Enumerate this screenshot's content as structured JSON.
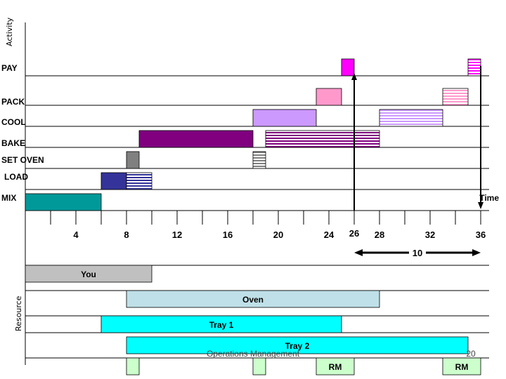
{
  "chart_data": {
    "type": "gantt",
    "ylabel_top": "Activity",
    "ylabel_bottom": "Resource",
    "xlabel": "Time",
    "x_range": [
      0,
      36
    ],
    "ticks": [
      4,
      8,
      12,
      16,
      20,
      24,
      28,
      32,
      36
    ],
    "marker": {
      "value": 26,
      "label": "26"
    },
    "span": {
      "from": 26,
      "to": 36,
      "label": "10"
    },
    "activities": [
      {
        "name": "PAY",
        "bars": [
          {
            "start": 25,
            "end": 26,
            "color": "#ff00ff",
            "pattern": "solid"
          },
          {
            "start": 35,
            "end": 36,
            "color": "#ff00ff",
            "pattern": "striped"
          }
        ]
      },
      {
        "name": "PACK",
        "bars": [
          {
            "start": 23,
            "end": 25,
            "color": "#ff99cc",
            "pattern": "solid"
          },
          {
            "start": 33,
            "end": 35,
            "color": "#ff99cc",
            "pattern": "striped"
          }
        ]
      },
      {
        "name": "COOL",
        "bars": [
          {
            "start": 18,
            "end": 23,
            "color": "#cc99ff",
            "pattern": "solid"
          },
          {
            "start": 28,
            "end": 33,
            "color": "#cc99ff",
            "pattern": "striped"
          }
        ]
      },
      {
        "name": "BAKE",
        "bars": [
          {
            "start": 9,
            "end": 18,
            "color": "#800080",
            "pattern": "solid"
          },
          {
            "start": 19,
            "end": 28,
            "color": "#800080",
            "pattern": "striped"
          }
        ]
      },
      {
        "name": "SET OVEN",
        "bars": [
          {
            "start": 8,
            "end": 9,
            "color": "#808080",
            "pattern": "solid"
          },
          {
            "start": 18,
            "end": 19,
            "color": "#808080",
            "pattern": "striped"
          }
        ]
      },
      {
        "name": "LOAD",
        "bars": [
          {
            "start": 6,
            "end": 8,
            "color": "#333399",
            "pattern": "solid"
          },
          {
            "start": 8,
            "end": 10,
            "color": "#333399",
            "pattern": "striped"
          }
        ]
      },
      {
        "name": "MIX",
        "bars": [
          {
            "start": 0,
            "end": 6,
            "color": "#009999",
            "pattern": "solid"
          }
        ]
      }
    ],
    "resources": [
      {
        "name": "You",
        "start": 0,
        "end": 10,
        "color": "#c0c0c0"
      },
      {
        "name": "Oven",
        "start": 8,
        "end": 28,
        "color": "#bfe0e8"
      },
      {
        "name": "Tray 1",
        "start": 6,
        "end": 25,
        "color": "#00ffff"
      },
      {
        "name": "Tray 2",
        "start": 8,
        "end": 35,
        "color": "#00ffff"
      }
    ],
    "extras": [
      {
        "label": "",
        "start": 8,
        "end": 9,
        "color": "#ccffcc"
      },
      {
        "label": "",
        "start": 18,
        "end": 19,
        "color": "#ccffcc"
      },
      {
        "label": "RM",
        "start": 23,
        "end": 26,
        "color": "#ccffcc"
      },
      {
        "label": "RM",
        "start": 33,
        "end": 36,
        "color": "#ccffcc"
      }
    ]
  },
  "footer": {
    "text": "Operations Management",
    "page": "20"
  }
}
